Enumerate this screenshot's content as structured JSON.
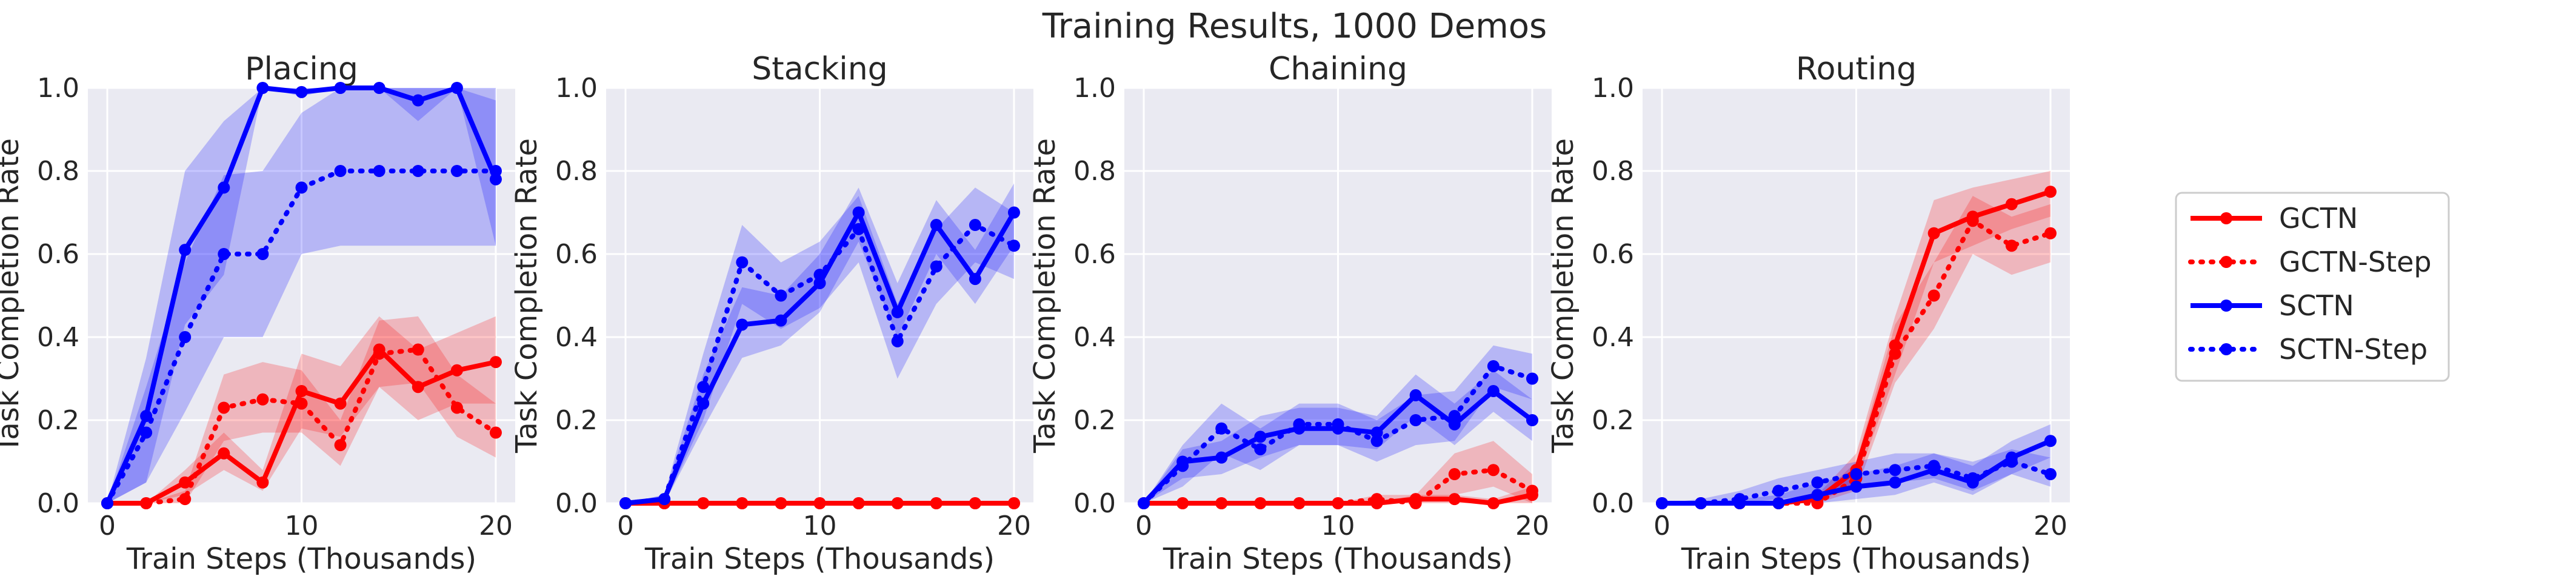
{
  "figure": {
    "title": "Training Results, 1000 Demos"
  },
  "colors": {
    "panel_bg": "#eaeaf2",
    "grid": "#ffffff",
    "GCTN": "#ff0000",
    "SCTN": "#0000ff",
    "text": "#262626"
  },
  "chart_data": [
    {
      "type": "line",
      "title": "Placing",
      "xlabel": "Train Steps (Thousands)",
      "ylabel": "Task Completion Rate",
      "xlim": [
        -1,
        21
      ],
      "ylim": [
        0,
        1.0
      ],
      "xticks": [
        "0",
        "10",
        "20"
      ],
      "yticks": [
        "0.0",
        "0.2",
        "0.4",
        "0.6",
        "0.8",
        "1.0"
      ],
      "grid": true,
      "x": [
        0,
        2,
        4,
        6,
        8,
        10,
        12,
        14,
        16,
        18,
        20
      ],
      "series": [
        {
          "name": "GCTN",
          "style": "solid",
          "color": "#ff0000",
          "values": [
            0.0,
            0.0,
            0.05,
            0.12,
            0.05,
            0.27,
            0.24,
            0.37,
            0.28,
            0.32,
            0.34
          ],
          "lower": [
            0.0,
            0.0,
            0.02,
            0.08,
            0.03,
            0.18,
            0.16,
            0.28,
            0.2,
            0.24,
            0.24
          ],
          "upper": [
            0.0,
            0.0,
            0.08,
            0.17,
            0.08,
            0.36,
            0.33,
            0.45,
            0.37,
            0.41,
            0.45
          ]
        },
        {
          "name": "GCTN-Step",
          "style": "dotted",
          "color": "#ff0000",
          "values": [
            0.0,
            0.0,
            0.01,
            0.23,
            0.25,
            0.24,
            0.14,
            0.36,
            0.37,
            0.23,
            0.17
          ],
          "lower": [
            0.0,
            0.0,
            0.0,
            0.15,
            0.17,
            0.17,
            0.09,
            0.28,
            0.29,
            0.16,
            0.11
          ],
          "upper": [
            0.0,
            0.0,
            0.03,
            0.31,
            0.34,
            0.32,
            0.2,
            0.44,
            0.45,
            0.31,
            0.24
          ]
        },
        {
          "name": "SCTN",
          "style": "solid",
          "color": "#0000ff",
          "values": [
            0.0,
            0.21,
            0.61,
            0.76,
            1.0,
            0.99,
            1.0,
            1.0,
            0.97,
            1.0,
            0.78
          ],
          "lower": [
            0.0,
            0.05,
            0.43,
            0.55,
            1.0,
            0.98,
            1.0,
            1.0,
            0.92,
            1.0,
            0.62
          ],
          "upper": [
            0.0,
            0.35,
            0.8,
            0.92,
            1.0,
            1.0,
            1.0,
            1.0,
            1.0,
            1.0,
            0.97
          ]
        },
        {
          "name": "SCTN-Step",
          "style": "dotted",
          "color": "#0000ff",
          "values": [
            0.0,
            0.17,
            0.4,
            0.6,
            0.6,
            0.76,
            0.8,
            0.8,
            0.8,
            0.8,
            0.8
          ],
          "lower": [
            0.0,
            0.05,
            0.22,
            0.4,
            0.4,
            0.6,
            0.62,
            0.62,
            0.62,
            0.62,
            0.62
          ],
          "upper": [
            0.0,
            0.28,
            0.58,
            0.79,
            0.8,
            0.94,
            1.0,
            1.0,
            1.0,
            1.0,
            1.0
          ]
        }
      ]
    },
    {
      "type": "line",
      "title": "Stacking",
      "xlabel": "Train Steps (Thousands)",
      "ylabel": "Task Completion Rate",
      "xlim": [
        -1,
        21
      ],
      "ylim": [
        0,
        1.0
      ],
      "xticks": [
        "0",
        "10",
        "20"
      ],
      "yticks": [
        "0.0",
        "0.2",
        "0.4",
        "0.6",
        "0.8",
        "1.0"
      ],
      "grid": true,
      "x": [
        0,
        2,
        4,
        6,
        8,
        10,
        12,
        14,
        16,
        18,
        20
      ],
      "series": [
        {
          "name": "GCTN",
          "style": "solid",
          "color": "#ff0000",
          "values": [
            0.0,
            0.0,
            0.0,
            0.0,
            0.0,
            0.0,
            0.0,
            0.0,
            0.0,
            0.0,
            0.0
          ],
          "lower": [
            0.0,
            0.0,
            0.0,
            0.0,
            0.0,
            0.0,
            0.0,
            0.0,
            0.0,
            0.0,
            0.0
          ],
          "upper": [
            0.0,
            0.0,
            0.0,
            0.0,
            0.0,
            0.0,
            0.0,
            0.0,
            0.0,
            0.0,
            0.0
          ]
        },
        {
          "name": "GCTN-Step",
          "style": "dotted",
          "color": "#ff0000",
          "values": [
            0.0,
            0.0,
            0.0,
            0.0,
            0.0,
            0.0,
            0.0,
            0.0,
            0.0,
            0.0,
            0.0
          ],
          "lower": [
            0.0,
            0.0,
            0.0,
            0.0,
            0.0,
            0.0,
            0.0,
            0.0,
            0.0,
            0.0,
            0.0
          ],
          "upper": [
            0.0,
            0.0,
            0.0,
            0.0,
            0.0,
            0.0,
            0.0,
            0.0,
            0.0,
            0.0,
            0.0
          ]
        },
        {
          "name": "SCTN",
          "style": "solid",
          "color": "#0000ff",
          "values": [
            0.0,
            0.01,
            0.24,
            0.43,
            0.44,
            0.53,
            0.7,
            0.46,
            0.67,
            0.54,
            0.7
          ],
          "lower": [
            0.0,
            0.0,
            0.18,
            0.35,
            0.38,
            0.46,
            0.63,
            0.4,
            0.6,
            0.48,
            0.62
          ],
          "upper": [
            0.0,
            0.02,
            0.31,
            0.52,
            0.5,
            0.6,
            0.76,
            0.53,
            0.73,
            0.61,
            0.77
          ]
        },
        {
          "name": "SCTN-Step",
          "style": "dotted",
          "color": "#0000ff",
          "values": [
            0.0,
            0.01,
            0.28,
            0.58,
            0.5,
            0.55,
            0.66,
            0.39,
            0.57,
            0.67,
            0.62
          ],
          "lower": [
            0.0,
            0.0,
            0.2,
            0.48,
            0.42,
            0.47,
            0.58,
            0.3,
            0.48,
            0.58,
            0.54
          ],
          "upper": [
            0.0,
            0.02,
            0.36,
            0.67,
            0.58,
            0.63,
            0.74,
            0.48,
            0.66,
            0.76,
            0.7
          ]
        }
      ]
    },
    {
      "type": "line",
      "title": "Chaining",
      "xlabel": "Train Steps (Thousands)",
      "ylabel": "Task Completion Rate",
      "xlim": [
        -1,
        21
      ],
      "ylim": [
        0,
        1.0
      ],
      "xticks": [
        "0",
        "10",
        "20"
      ],
      "yticks": [
        "0.0",
        "0.2",
        "0.4",
        "0.6",
        "0.8",
        "1.0"
      ],
      "grid": true,
      "x": [
        0,
        2,
        4,
        6,
        8,
        10,
        12,
        14,
        16,
        18,
        20
      ],
      "series": [
        {
          "name": "GCTN",
          "style": "solid",
          "color": "#ff0000",
          "values": [
            0.0,
            0.0,
            0.0,
            0.0,
            0.0,
            0.0,
            0.0,
            0.01,
            0.01,
            0.0,
            0.02
          ],
          "lower": [
            0.0,
            0.0,
            0.0,
            0.0,
            0.0,
            0.0,
            0.0,
            0.0,
            0.0,
            0.0,
            0.0
          ],
          "upper": [
            0.0,
            0.0,
            0.0,
            0.0,
            0.0,
            0.0,
            0.0,
            0.02,
            0.02,
            0.01,
            0.04
          ]
        },
        {
          "name": "GCTN-Step",
          "style": "dotted",
          "color": "#ff0000",
          "values": [
            0.0,
            0.0,
            0.0,
            0.0,
            0.0,
            0.0,
            0.01,
            0.0,
            0.07,
            0.08,
            0.03
          ],
          "lower": [
            0.0,
            0.0,
            0.0,
            0.0,
            0.0,
            0.0,
            0.0,
            0.0,
            0.02,
            0.04,
            0.0
          ],
          "upper": [
            0.0,
            0.0,
            0.0,
            0.0,
            0.0,
            0.0,
            0.02,
            0.02,
            0.12,
            0.15,
            0.07
          ]
        },
        {
          "name": "SCTN",
          "style": "solid",
          "color": "#0000ff",
          "values": [
            0.0,
            0.1,
            0.11,
            0.16,
            0.18,
            0.18,
            0.17,
            0.26,
            0.19,
            0.27,
            0.2
          ],
          "lower": [
            0.0,
            0.06,
            0.07,
            0.11,
            0.14,
            0.14,
            0.13,
            0.21,
            0.14,
            0.22,
            0.15
          ],
          "upper": [
            0.0,
            0.13,
            0.15,
            0.21,
            0.23,
            0.23,
            0.21,
            0.31,
            0.24,
            0.32,
            0.25
          ]
        },
        {
          "name": "SCTN-Step",
          "style": "dotted",
          "color": "#0000ff",
          "values": [
            0.0,
            0.09,
            0.18,
            0.13,
            0.19,
            0.19,
            0.15,
            0.2,
            0.21,
            0.33,
            0.3
          ],
          "lower": [
            0.0,
            0.04,
            0.12,
            0.08,
            0.14,
            0.14,
            0.1,
            0.14,
            0.15,
            0.28,
            0.25
          ],
          "upper": [
            0.0,
            0.14,
            0.24,
            0.18,
            0.24,
            0.24,
            0.2,
            0.26,
            0.27,
            0.38,
            0.36
          ]
        }
      ]
    },
    {
      "type": "line",
      "title": "Routing",
      "xlabel": "Train Steps (Thousands)",
      "ylabel": "Task Completion Rate",
      "xlim": [
        -1,
        21
      ],
      "ylim": [
        0,
        1.0
      ],
      "xticks": [
        "0",
        "10",
        "20"
      ],
      "yticks": [
        "0.0",
        "0.2",
        "0.4",
        "0.6",
        "0.8",
        "1.0"
      ],
      "grid": true,
      "x": [
        0,
        2,
        4,
        6,
        8,
        10,
        12,
        14,
        16,
        18,
        20
      ],
      "series": [
        {
          "name": "GCTN",
          "style": "solid",
          "color": "#ff0000",
          "values": [
            0.0,
            0.0,
            0.0,
            0.0,
            0.01,
            0.08,
            0.38,
            0.65,
            0.69,
            0.72,
            0.75
          ],
          "lower": [
            0.0,
            0.0,
            0.0,
            0.0,
            0.0,
            0.05,
            0.31,
            0.58,
            0.62,
            0.66,
            0.69
          ],
          "upper": [
            0.0,
            0.0,
            0.0,
            0.0,
            0.02,
            0.12,
            0.45,
            0.73,
            0.76,
            0.78,
            0.8
          ]
        },
        {
          "name": "GCTN-Step",
          "style": "dotted",
          "color": "#ff0000",
          "values": [
            0.0,
            0.0,
            0.0,
            0.0,
            0.0,
            0.06,
            0.36,
            0.5,
            0.68,
            0.62,
            0.65
          ],
          "lower": [
            0.0,
            0.0,
            0.0,
            0.0,
            0.0,
            0.03,
            0.29,
            0.42,
            0.6,
            0.55,
            0.58
          ],
          "upper": [
            0.0,
            0.0,
            0.0,
            0.0,
            0.01,
            0.1,
            0.43,
            0.58,
            0.74,
            0.69,
            0.72
          ]
        },
        {
          "name": "SCTN",
          "style": "solid",
          "color": "#0000ff",
          "values": [
            0.0,
            0.0,
            0.0,
            0.0,
            0.02,
            0.04,
            0.05,
            0.08,
            0.05,
            0.11,
            0.15
          ],
          "lower": [
            0.0,
            0.0,
            0.0,
            0.0,
            0.0,
            0.01,
            0.02,
            0.05,
            0.02,
            0.07,
            0.11
          ],
          "upper": [
            0.0,
            0.0,
            0.01,
            0.02,
            0.05,
            0.07,
            0.09,
            0.12,
            0.09,
            0.15,
            0.19
          ]
        },
        {
          "name": "SCTN-Step",
          "style": "dotted",
          "color": "#0000ff",
          "values": [
            0.0,
            0.0,
            0.01,
            0.03,
            0.05,
            0.07,
            0.08,
            0.09,
            0.06,
            0.1,
            0.07
          ],
          "lower": [
            0.0,
            0.0,
            0.0,
            0.01,
            0.02,
            0.04,
            0.05,
            0.06,
            0.03,
            0.07,
            0.04
          ],
          "upper": [
            0.0,
            0.01,
            0.03,
            0.06,
            0.08,
            0.1,
            0.12,
            0.12,
            0.1,
            0.13,
            0.11
          ]
        }
      ]
    }
  ],
  "legend": {
    "placement": "right",
    "entries": [
      {
        "label": "GCTN",
        "style": "solid",
        "color": "#ff0000"
      },
      {
        "label": "GCTN-Step",
        "style": "dotted",
        "color": "#ff0000"
      },
      {
        "label": "SCTN",
        "style": "solid",
        "color": "#0000ff"
      },
      {
        "label": "SCTN-Step",
        "style": "dotted",
        "color": "#0000ff"
      }
    ]
  }
}
